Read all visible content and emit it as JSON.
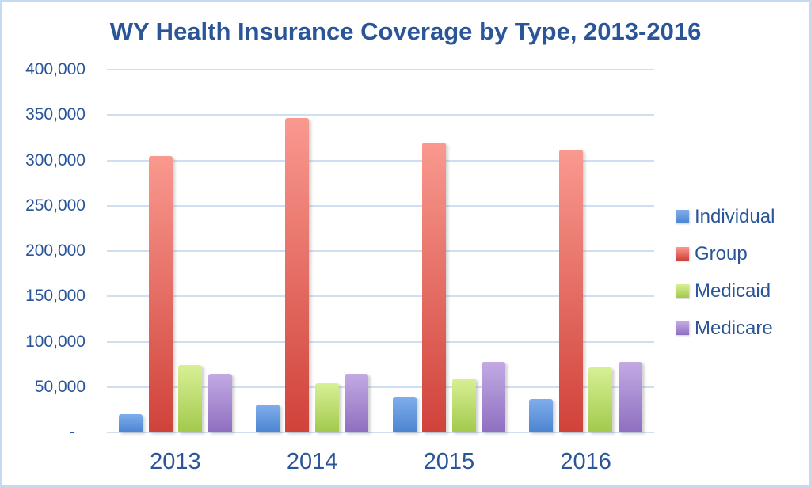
{
  "title": "WY Health Insurance Coverage by Type, 2013-2016",
  "colors": {
    "text_blue": "#2A5699",
    "frame_border": "#C5D9F1",
    "gridline": "#CFDFF2",
    "background": "#FFFFFF"
  },
  "chart_data": {
    "type": "bar",
    "title": "WY Health Insurance Coverage by Type, 2013-2016",
    "categories": [
      "2013",
      "2014",
      "2015",
      "2016"
    ],
    "series": [
      {
        "name": "Individual",
        "values": [
          20000,
          31000,
          39000,
          37000
        ],
        "color_top": "#7FAEEC",
        "color_bottom": "#4C84D0"
      },
      {
        "name": "Group",
        "values": [
          305000,
          347000,
          320000,
          312000
        ],
        "color_top": "#F9998F",
        "color_bottom": "#D0423A"
      },
      {
        "name": "Medicaid",
        "values": [
          74000,
          54000,
          59000,
          72000
        ],
        "color_top": "#D8F095",
        "color_bottom": "#A2C94C"
      },
      {
        "name": "Medicare",
        "values": [
          65000,
          65000,
          78000,
          78000
        ],
        "color_top": "#C3AAE3",
        "color_bottom": "#8E6FC0"
      }
    ],
    "xlabel": "",
    "ylabel": "",
    "ylim": [
      0,
      400000
    ],
    "ytick_step": 50000,
    "ytick_labels": [
      "-",
      "50,000",
      "100,000",
      "150,000",
      "200,000",
      "250,000",
      "300,000",
      "350,000",
      "400,000"
    ],
    "grid": true,
    "legend_position": "right",
    "legend_items": [
      "Individual",
      "Group",
      "Medicaid",
      "Medicare"
    ]
  }
}
